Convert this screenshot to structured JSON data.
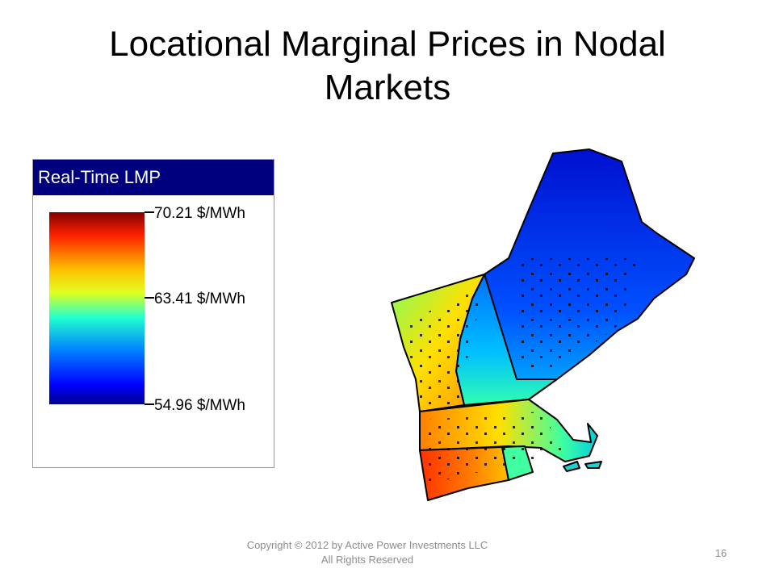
{
  "title": "Locational Marginal Prices in Nodal Markets",
  "legend": {
    "title": "Real-Time LMP",
    "labels": [
      "70.21 $/MWh",
      "63.41 $/MWh",
      "54.96 $/MWh"
    ]
  },
  "footer": {
    "copyright": "Copyright © 2012 by Active Power Investments LLC",
    "rights": "All Rights Reserved",
    "page": "16"
  }
}
